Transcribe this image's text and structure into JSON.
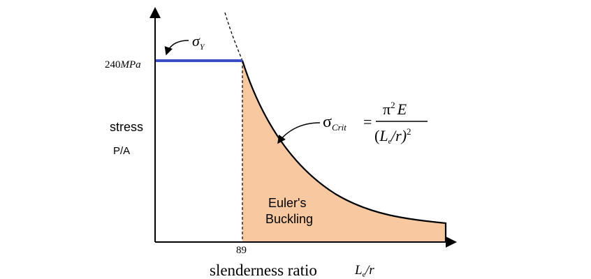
{
  "y_axis": {
    "tick": "240",
    "tick_unit": "MPa",
    "label": "stress",
    "sublabel": "P/A"
  },
  "x_axis": {
    "tick": "89",
    "label": "slenderness ratio",
    "variable": "L",
    "variable_sub": "e",
    "variable_rest": "/r"
  },
  "annotations": {
    "yield": {
      "symbol": "σ",
      "sub": "Y"
    },
    "critical": {
      "symbol": "σ",
      "sub": "Crit",
      "eq": "=",
      "num_pi": "π",
      "num_exp": "2",
      "num_E": "E",
      "den_open": "(",
      "den_L": "L",
      "den_sub": "e",
      "den_rest": "/r)",
      "den_exp": "2"
    },
    "region": {
      "line1": "Euler's",
      "line2": "Buckling"
    }
  }
}
